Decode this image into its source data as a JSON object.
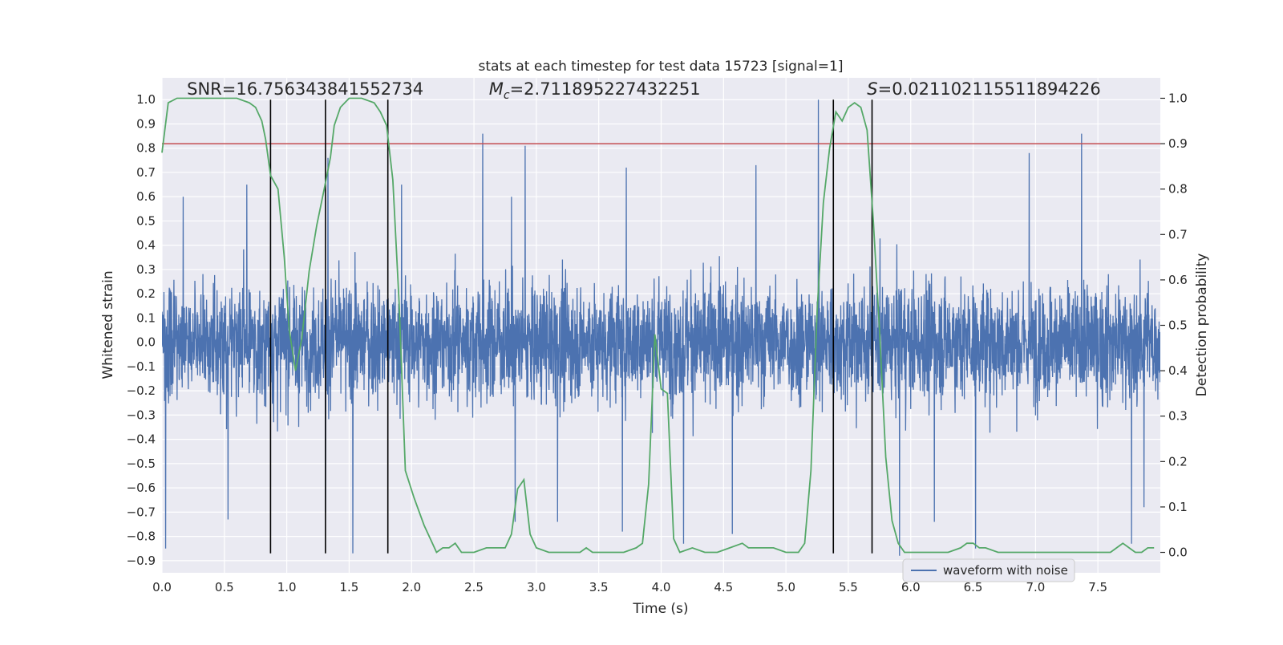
{
  "chart_data": {
    "type": "line",
    "title": "stats at each timestep for test data 15723 [signal=1]",
    "xlabel": "Time (s)",
    "ylabel": "Whitened strain",
    "ylabel_right": "Detection probability",
    "xlim": [
      0.0,
      8.0
    ],
    "ylim": [
      -0.95,
      1.09
    ],
    "ylim_right": [
      -0.045,
      1.045
    ],
    "x_ticks": [
      0.0,
      0.5,
      1.0,
      1.5,
      2.0,
      2.5,
      3.0,
      3.5,
      4.0,
      4.5,
      5.0,
      5.5,
      6.0,
      6.5,
      7.0,
      7.5
    ],
    "x_tick_labels": [
      "0.0",
      "0.5",
      "1.0",
      "1.5",
      "2.0",
      "2.5",
      "3.0",
      "3.5",
      "4.0",
      "4.5",
      "5.0",
      "5.5",
      "6.0",
      "6.5",
      "7.0",
      "7.5"
    ],
    "y_ticks": [
      -0.9,
      -0.8,
      -0.7,
      -0.6,
      -0.5,
      -0.4,
      -0.3,
      -0.2,
      -0.1,
      0.0,
      0.1,
      0.2,
      0.3,
      0.4,
      0.5,
      0.6,
      0.7,
      0.8,
      0.9,
      1.0
    ],
    "y_tick_labels": [
      "−0.9",
      "−0.8",
      "−0.7",
      "−0.6",
      "−0.5",
      "−0.4",
      "−0.3",
      "−0.2",
      "−0.1",
      "0.0",
      "0.1",
      "0.2",
      "0.3",
      "0.4",
      "0.5",
      "0.6",
      "0.7",
      "0.8",
      "0.9",
      "1.0"
    ],
    "y_ticks_right": [
      0.0,
      0.1,
      0.2,
      0.3,
      0.4,
      0.5,
      0.6,
      0.7,
      0.8,
      0.9,
      1.0
    ],
    "y_tick_labels_right": [
      "0.0",
      "0.1",
      "0.2",
      "0.3",
      "0.4",
      "0.5",
      "0.6",
      "0.7",
      "0.8",
      "0.9",
      "1.0"
    ],
    "grid": true,
    "legend_position": "bottom-right",
    "series": [
      {
        "name": "waveform with noise",
        "axis": "left",
        "color": "#4c72b0",
        "kind": "noise-waveform",
        "sample_rate_hz": 512,
        "typical_envelope": [
          -0.4,
          0.45
        ],
        "peaks": [
          {
            "x": 0.03,
            "y": -0.85
          },
          {
            "x": 0.17,
            "y": 0.6
          },
          {
            "x": 0.53,
            "y": -0.73
          },
          {
            "x": 0.68,
            "y": 0.65
          },
          {
            "x": 1.31,
            "y": -0.7
          },
          {
            "x": 1.33,
            "y": 0.76
          },
          {
            "x": 1.53,
            "y": -0.87
          },
          {
            "x": 1.92,
            "y": 0.65
          },
          {
            "x": 2.57,
            "y": 0.86
          },
          {
            "x": 2.8,
            "y": 0.6
          },
          {
            "x": 2.83,
            "y": -0.74
          },
          {
            "x": 2.91,
            "y": 0.81
          },
          {
            "x": 3.17,
            "y": -0.74
          },
          {
            "x": 3.69,
            "y": -0.78
          },
          {
            "x": 3.72,
            "y": 0.72
          },
          {
            "x": 4.18,
            "y": -0.83
          },
          {
            "x": 4.57,
            "y": -0.79
          },
          {
            "x": 4.76,
            "y": 0.73
          },
          {
            "x": 5.26,
            "y": 1.0
          },
          {
            "x": 5.91,
            "y": -0.88
          },
          {
            "x": 6.19,
            "y": -0.74
          },
          {
            "x": 6.52,
            "y": -0.85
          },
          {
            "x": 6.95,
            "y": 0.78
          },
          {
            "x": 7.37,
            "y": 0.86
          },
          {
            "x": 7.77,
            "y": -0.83
          },
          {
            "x": 7.87,
            "y": -0.68
          }
        ]
      },
      {
        "name": "",
        "axis": "right",
        "color": "#55a868",
        "x": [
          0.0,
          0.05,
          0.12,
          0.2,
          0.3,
          0.4,
          0.5,
          0.6,
          0.7,
          0.75,
          0.8,
          0.83,
          0.87,
          0.93,
          0.98,
          1.02,
          1.07,
          1.12,
          1.18,
          1.24,
          1.3,
          1.35,
          1.38,
          1.43,
          1.5,
          1.6,
          1.7,
          1.75,
          1.8,
          1.85,
          1.9,
          1.95,
          2.02,
          2.1,
          2.15,
          2.2,
          2.25,
          2.3,
          2.35,
          2.4,
          2.45,
          2.5,
          2.6,
          2.7,
          2.75,
          2.8,
          2.85,
          2.9,
          2.95,
          3.0,
          3.1,
          3.2,
          3.3,
          3.35,
          3.4,
          3.45,
          3.5,
          3.6,
          3.7,
          3.8,
          3.85,
          3.9,
          3.95,
          4.0,
          4.05,
          4.1,
          4.15,
          4.25,
          4.35,
          4.45,
          4.55,
          4.65,
          4.7,
          4.8,
          4.9,
          5.0,
          5.1,
          5.15,
          5.2,
          5.25,
          5.3,
          5.35,
          5.4,
          5.45,
          5.5,
          5.55,
          5.6,
          5.65,
          5.7,
          5.75,
          5.8,
          5.85,
          5.9,
          5.95,
          6.0,
          6.1,
          6.2,
          6.3,
          6.4,
          6.45,
          6.5,
          6.55,
          6.6,
          6.7,
          6.8,
          6.9,
          7.0,
          7.1,
          7.2,
          7.3,
          7.4,
          7.5,
          7.6,
          7.65,
          7.7,
          7.75,
          7.8,
          7.85,
          7.9,
          7.95
        ],
        "y": [
          0.88,
          0.99,
          1.0,
          1.0,
          1.0,
          1.0,
          1.0,
          1.0,
          0.99,
          0.98,
          0.95,
          0.91,
          0.83,
          0.8,
          0.65,
          0.49,
          0.4,
          0.47,
          0.62,
          0.72,
          0.8,
          0.87,
          0.94,
          0.98,
          1.0,
          1.0,
          0.99,
          0.97,
          0.94,
          0.82,
          0.55,
          0.18,
          0.12,
          0.06,
          0.03,
          0.0,
          0.01,
          0.01,
          0.02,
          0.0,
          0.0,
          0.0,
          0.01,
          0.01,
          0.01,
          0.04,
          0.14,
          0.16,
          0.04,
          0.01,
          0.0,
          0.0,
          0.0,
          0.0,
          0.01,
          0.0,
          0.0,
          0.0,
          0.0,
          0.01,
          0.02,
          0.15,
          0.48,
          0.36,
          0.35,
          0.03,
          0.0,
          0.01,
          0.0,
          0.0,
          0.01,
          0.02,
          0.01,
          0.01,
          0.01,
          0.0,
          0.0,
          0.02,
          0.18,
          0.53,
          0.77,
          0.89,
          0.97,
          0.95,
          0.98,
          0.99,
          0.98,
          0.93,
          0.73,
          0.49,
          0.21,
          0.07,
          0.02,
          0.0,
          0.0,
          0.0,
          0.0,
          0.0,
          0.01,
          0.02,
          0.02,
          0.01,
          0.01,
          0.0,
          0.0,
          0.0,
          0.0,
          0.0,
          0.0,
          0.0,
          0.0,
          0.0,
          0.0,
          0.01,
          0.02,
          0.01,
          0.0,
          0.0,
          0.01,
          0.01
        ]
      }
    ],
    "threshold_line": {
      "axis": "right",
      "y": 0.9,
      "color": "#c44e52"
    },
    "vertical_lines": {
      "x": [
        0.87,
        1.31,
        1.81,
        5.38,
        5.69
      ],
      "y_range": [
        -0.87,
        1.0
      ],
      "color": "#000000"
    },
    "annotations": [
      {
        "text": "SNR=16.756343841552734",
        "x": 0.2,
        "y": 1.02
      },
      {
        "prefix": "M",
        "subscript": "c",
        "text": "=2.711895227432251",
        "x": 2.62,
        "y": 1.02
      },
      {
        "prefix": "S",
        "text": "=0.021102115511894226",
        "x": 5.65,
        "y": 1.02
      }
    ]
  }
}
